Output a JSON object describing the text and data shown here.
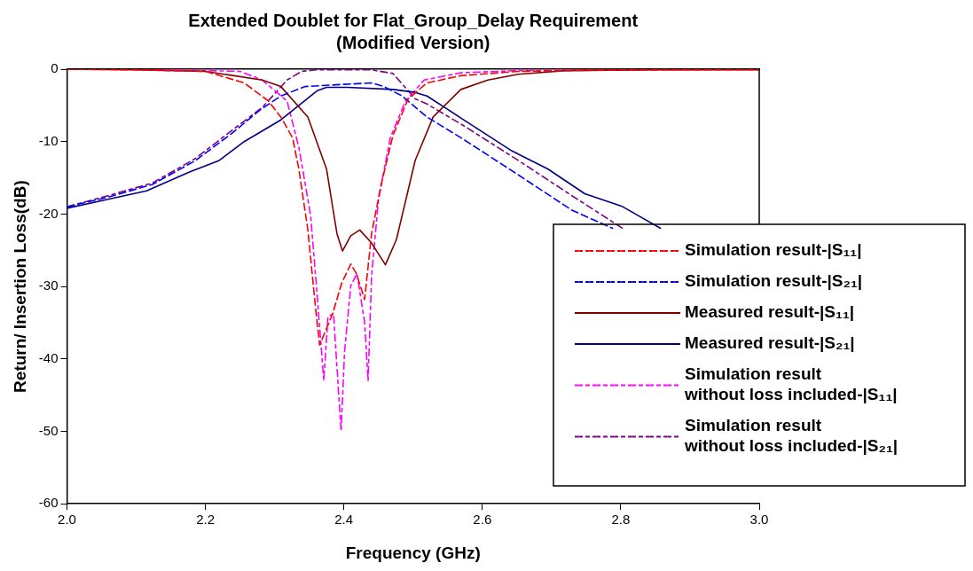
{
  "chart_data": {
    "type": "line",
    "title": "Extended Doublet for Flat_Group_Delay Requirement\n(Modified Version)",
    "xlabel": "Frequency (GHz)",
    "ylabel": "Return/ Insertion Loss(dB)",
    "xlim": [
      2.0,
      3.0
    ],
    "xticks": [
      {
        "value": 2.0,
        "label": "2.0"
      },
      {
        "value": 2.2,
        "label": "2.2"
      },
      {
        "value": 2.4,
        "label": "2.4"
      },
      {
        "value": 2.6,
        "label": "2.6"
      },
      {
        "value": 2.8,
        "label": "2.8"
      },
      {
        "value": 3.0,
        "label": "3.0"
      }
    ],
    "ylim": [
      -60,
      0
    ],
    "yticks": [
      -60,
      -50,
      -40,
      -30,
      -20,
      -10,
      0
    ],
    "grid": false,
    "legend": "bottom right",
    "series": [
      {
        "name": "Simulation result-|S₁₁|",
        "color": "#ff0000",
        "line_style": "dashed",
        "x": [
          2.0,
          2.1,
          2.2,
          2.256,
          2.291,
          2.309,
          2.326,
          2.335,
          2.348,
          2.359,
          2.365,
          2.384,
          2.397,
          2.41,
          2.418,
          2.43,
          2.44,
          2.454,
          2.471,
          2.493,
          2.52,
          2.569,
          2.652,
          2.8,
          3.0
        ],
        "values": [
          0,
          -0.1,
          -0.3,
          -1.9,
          -4.4,
          -6.6,
          -9.5,
          -13.8,
          -22.2,
          -32.9,
          -38.1,
          -33.7,
          -29.5,
          -26.9,
          -28.2,
          -31.8,
          -22.7,
          -15.9,
          -9.1,
          -4.1,
          -1.9,
          -0.9,
          -0.3,
          -0.1,
          -0.1
        ]
      },
      {
        "name": "Simulation result-|S₂₁|",
        "color": "#0000ff",
        "line_style": "dashed",
        "x": [
          2.0,
          2.058,
          2.124,
          2.186,
          2.239,
          2.278,
          2.309,
          2.344,
          2.4,
          2.44,
          2.458,
          2.484,
          2.52,
          2.573,
          2.652,
          2.73,
          2.789
        ],
        "values": [
          -19,
          -17.7,
          -15.9,
          -12.6,
          -8.8,
          -5.7,
          -3.7,
          -2.4,
          -2.1,
          -1.9,
          -2.4,
          -3.7,
          -6.6,
          -9.7,
          -14.6,
          -19.5,
          -22.0
        ]
      },
      {
        "name": "Measured result-|S₁₁|",
        "color": "#800000",
        "line_style": "solid",
        "x": [
          2.0,
          2.1,
          2.2,
          2.282,
          2.309,
          2.348,
          2.375,
          2.39,
          2.398,
          2.41,
          2.423,
          2.44,
          2.46,
          2.476,
          2.503,
          2.529,
          2.569,
          2.608,
          2.652,
          2.72,
          2.85,
          3.0
        ],
        "values": [
          0,
          -0.1,
          -0.3,
          -1.5,
          -2.4,
          -6.6,
          -13.8,
          -22.7,
          -25.1,
          -23.0,
          -22.2,
          -24.0,
          -27.0,
          -23.5,
          -12.6,
          -6.6,
          -2.8,
          -1.5,
          -0.7,
          -0.2,
          -0.1,
          -0.1
        ]
      },
      {
        "name": "Measured result-|S₂₁|",
        "color": "#000080",
        "line_style": "solid",
        "x": [
          2.0,
          2.058,
          2.115,
          2.177,
          2.22,
          2.256,
          2.309,
          2.361,
          2.375,
          2.405,
          2.471,
          2.503,
          2.52,
          2.546,
          2.573,
          2.643,
          2.695,
          2.748,
          2.801,
          2.858
        ],
        "values": [
          -19.2,
          -18,
          -16.8,
          -14.2,
          -12.6,
          -10,
          -7,
          -3,
          -2.5,
          -2.5,
          -2.8,
          -3.2,
          -3.7,
          -5.3,
          -7,
          -11.3,
          -13.8,
          -17.2,
          -18.9,
          -22.0
        ]
      },
      {
        "name": "Simulation result\nwithout loss included-|S₁₁|",
        "color": "#ff00ff",
        "line_style": "dashdot",
        "x": [
          2.0,
          2.1,
          2.25,
          2.282,
          2.318,
          2.335,
          2.352,
          2.361,
          2.371,
          2.377,
          2.385,
          2.396,
          2.401,
          2.41,
          2.419,
          2.43,
          2.435,
          2.44,
          2.45,
          2.467,
          2.489,
          2.516,
          2.569,
          2.65,
          3.0
        ],
        "values": [
          0,
          0,
          -0.3,
          -1.5,
          -4.4,
          -10.8,
          -20.2,
          -30.7,
          -43,
          -34.2,
          -33.7,
          -50,
          -39,
          -29.9,
          -28.2,
          -35,
          -43,
          -28.6,
          -18,
          -9.5,
          -4.4,
          -1.5,
          -0.5,
          -0.2,
          0
        ]
      },
      {
        "name": "Simulation result\nwithout loss included-|S₂₁|",
        "color": "#800080",
        "line_style": "dashdot",
        "x": [
          2.0,
          2.058,
          2.124,
          2.186,
          2.239,
          2.282,
          2.318,
          2.339,
          2.36,
          2.44,
          2.471,
          2.503,
          2.52,
          2.573,
          2.652,
          2.73,
          2.803
        ],
        "values": [
          -19,
          -17.5,
          -15.7,
          -12.3,
          -8.4,
          -5.3,
          -1.5,
          -0.3,
          -0.1,
          -0.1,
          -0.6,
          -4.1,
          -4.8,
          -7.8,
          -12.6,
          -17.5,
          -22.0
        ]
      }
    ]
  }
}
